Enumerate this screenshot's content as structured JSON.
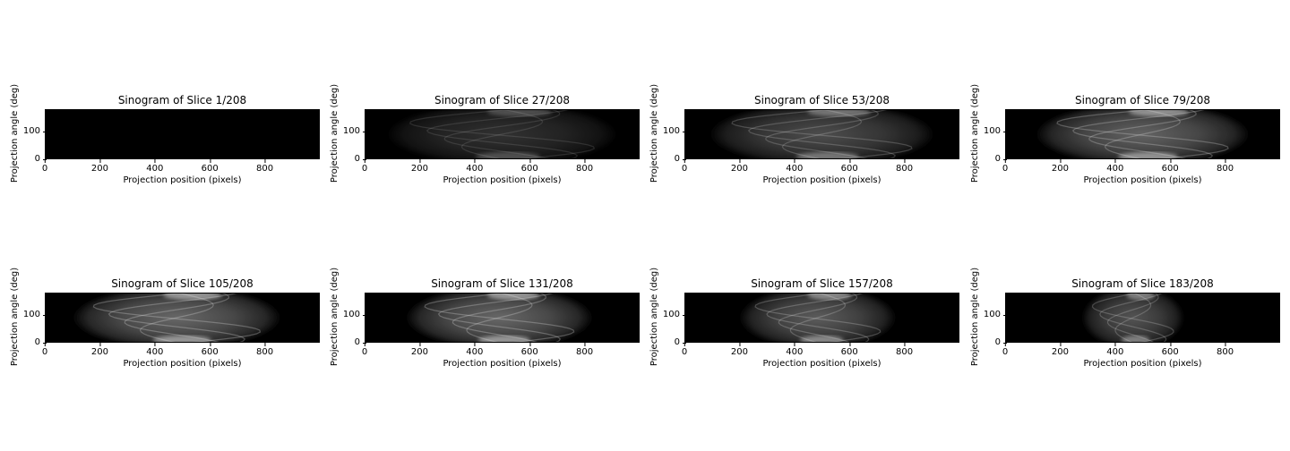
{
  "chart_data": [
    {
      "type": "heatmap",
      "title": "Sinogram of Slice 1/208",
      "xlabel": "Projection position (pixels)",
      "ylabel": "Projection angle (deg)",
      "xlim": [
        0,
        1000
      ],
      "ylim": [
        0,
        180
      ],
      "xticks": [
        "0",
        "200",
        "400",
        "600",
        "800"
      ],
      "yticks": [
        "0",
        "100"
      ],
      "colormap": "gray",
      "object_extent": [],
      "intensity": 0.0
    },
    {
      "type": "heatmap",
      "title": "Sinogram of Slice 27/208",
      "xlabel": "Projection position (pixels)",
      "ylabel": "Projection angle (deg)",
      "xlim": [
        0,
        1000
      ],
      "ylim": [
        0,
        180
      ],
      "xticks": [
        "0",
        "200",
        "400",
        "600",
        "800"
      ],
      "yticks": [
        "0",
        "100"
      ],
      "colormap": "gray",
      "object_extent": [
        80,
        920
      ],
      "intensity": 0.32
    },
    {
      "type": "heatmap",
      "title": "Sinogram of Slice 53/208",
      "xlabel": "Projection position (pixels)",
      "ylabel": "Projection angle (deg)",
      "xlim": [
        0,
        1000
      ],
      "ylim": [
        0,
        180
      ],
      "xticks": [
        "0",
        "200",
        "400",
        "600",
        "800"
      ],
      "yticks": [
        "0",
        "100"
      ],
      "colormap": "gray",
      "object_extent": [
        90,
        910
      ],
      "intensity": 0.5
    },
    {
      "type": "heatmap",
      "title": "Sinogram of Slice 79/208",
      "xlabel": "Projection position (pixels)",
      "ylabel": "Projection angle (deg)",
      "xlim": [
        0,
        1000
      ],
      "ylim": [
        0,
        180
      ],
      "xticks": [
        "0",
        "200",
        "400",
        "600",
        "800"
      ],
      "yticks": [
        "0",
        "100"
      ],
      "colormap": "gray",
      "object_extent": [
        110,
        890
      ],
      "intensity": 0.65
    },
    {
      "type": "heatmap",
      "title": "Sinogram of Slice 105/208",
      "xlabel": "Projection position (pixels)",
      "ylabel": "Projection angle (deg)",
      "xlim": [
        0,
        1000
      ],
      "ylim": [
        0,
        180
      ],
      "xticks": [
        "0",
        "200",
        "400",
        "600",
        "800"
      ],
      "yticks": [
        "0",
        "100"
      ],
      "colormap": "gray",
      "object_extent": [
        100,
        860
      ],
      "intensity": 0.68
    },
    {
      "type": "heatmap",
      "title": "Sinogram of Slice 131/208",
      "xlabel": "Projection position (pixels)",
      "ylabel": "Projection angle (deg)",
      "xlim": [
        0,
        1000
      ],
      "ylim": [
        0,
        180
      ],
      "xticks": [
        "0",
        "200",
        "400",
        "600",
        "800"
      ],
      "yticks": [
        "0",
        "100"
      ],
      "colormap": "gray",
      "object_extent": [
        150,
        830
      ],
      "intensity": 0.68
    },
    {
      "type": "heatmap",
      "title": "Sinogram of Slice 157/208",
      "xlabel": "Projection position (pixels)",
      "ylabel": "Projection angle (deg)",
      "xlim": [
        0,
        1000
      ],
      "ylim": [
        0,
        180
      ],
      "xticks": [
        "0",
        "200",
        "400",
        "600",
        "800"
      ],
      "yticks": [
        "0",
        "100"
      ],
      "colormap": "gray",
      "object_extent": [
        200,
        770
      ],
      "intensity": 0.6
    },
    {
      "type": "heatmap",
      "title": "Sinogram of Slice 183/208",
      "xlabel": "Projection position (pixels)",
      "ylabel": "Projection angle (deg)",
      "xlim": [
        0,
        1000
      ],
      "ylim": [
        0,
        180
      ],
      "xticks": [
        "0",
        "200",
        "400",
        "600",
        "800"
      ],
      "yticks": [
        "0",
        "100"
      ],
      "colormap": "gray",
      "object_extent": [
        280,
        650
      ],
      "intensity": 0.55
    }
  ]
}
